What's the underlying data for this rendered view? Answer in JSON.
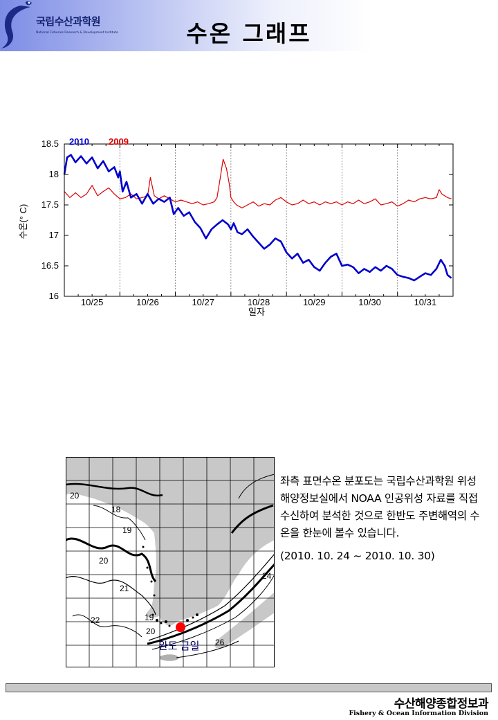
{
  "header": {
    "title": "수온 그래프",
    "logo_name": "국립수산과학원",
    "logo_sub": "National Fisheries Research & Development Institute"
  },
  "chart_data": {
    "type": "line",
    "title": "",
    "xlabel": "일자",
    "ylabel": "수온(° C)",
    "ylim": [
      16,
      18.5
    ],
    "yticks": [
      "18.5",
      "18",
      "17.5",
      "17",
      "16.5",
      "16"
    ],
    "categories": [
      "10/25",
      "10/26",
      "10/27",
      "10/28",
      "10/29",
      "10/30",
      "10/31"
    ],
    "x_range_days": [
      0,
      7
    ],
    "series": [
      {
        "name": "2010",
        "color": "#0000cc",
        "points": [
          [
            0,
            18.0
          ],
          [
            0.05,
            18.28
          ],
          [
            0.12,
            18.32
          ],
          [
            0.2,
            18.2
          ],
          [
            0.3,
            18.3
          ],
          [
            0.4,
            18.18
          ],
          [
            0.5,
            18.28
          ],
          [
            0.6,
            18.1
          ],
          [
            0.7,
            18.22
          ],
          [
            0.8,
            18.05
          ],
          [
            0.9,
            18.12
          ],
          [
            0.97,
            17.95
          ],
          [
            1.0,
            18.05
          ],
          [
            1.05,
            17.72
          ],
          [
            1.12,
            17.88
          ],
          [
            1.2,
            17.62
          ],
          [
            1.3,
            17.68
          ],
          [
            1.4,
            17.52
          ],
          [
            1.5,
            17.68
          ],
          [
            1.6,
            17.52
          ],
          [
            1.7,
            17.6
          ],
          [
            1.8,
            17.55
          ],
          [
            1.9,
            17.62
          ],
          [
            1.97,
            17.35
          ],
          [
            2.05,
            17.45
          ],
          [
            2.15,
            17.32
          ],
          [
            2.25,
            17.38
          ],
          [
            2.35,
            17.22
          ],
          [
            2.45,
            17.12
          ],
          [
            2.55,
            16.95
          ],
          [
            2.65,
            17.1
          ],
          [
            2.75,
            17.18
          ],
          [
            2.85,
            17.25
          ],
          [
            2.95,
            17.18
          ],
          [
            3.0,
            17.1
          ],
          [
            3.05,
            17.2
          ],
          [
            3.12,
            17.05
          ],
          [
            3.2,
            17.02
          ],
          [
            3.3,
            17.1
          ],
          [
            3.4,
            16.98
          ],
          [
            3.5,
            16.88
          ],
          [
            3.6,
            16.78
          ],
          [
            3.7,
            16.85
          ],
          [
            3.8,
            16.95
          ],
          [
            3.9,
            16.9
          ],
          [
            4.0,
            16.72
          ],
          [
            4.1,
            16.62
          ],
          [
            4.2,
            16.7
          ],
          [
            4.3,
            16.55
          ],
          [
            4.4,
            16.6
          ],
          [
            4.5,
            16.48
          ],
          [
            4.6,
            16.42
          ],
          [
            4.7,
            16.55
          ],
          [
            4.8,
            16.65
          ],
          [
            4.9,
            16.7
          ],
          [
            5.0,
            16.5
          ],
          [
            5.1,
            16.52
          ],
          [
            5.2,
            16.48
          ],
          [
            5.3,
            16.38
          ],
          [
            5.4,
            16.45
          ],
          [
            5.5,
            16.4
          ],
          [
            5.6,
            16.48
          ],
          [
            5.7,
            16.42
          ],
          [
            5.8,
            16.5
          ],
          [
            5.9,
            16.45
          ],
          [
            6.0,
            16.35
          ],
          [
            6.1,
            16.32
          ],
          [
            6.2,
            16.3
          ],
          [
            6.3,
            16.26
          ],
          [
            6.4,
            16.32
          ],
          [
            6.5,
            16.38
          ],
          [
            6.6,
            16.35
          ],
          [
            6.7,
            16.45
          ],
          [
            6.78,
            16.6
          ],
          [
            6.85,
            16.5
          ],
          [
            6.9,
            16.35
          ],
          [
            6.97,
            16.3
          ]
        ]
      },
      {
        "name": "2009",
        "color": "#dd0000",
        "points": [
          [
            0,
            17.72
          ],
          [
            0.1,
            17.62
          ],
          [
            0.2,
            17.7
          ],
          [
            0.3,
            17.62
          ],
          [
            0.4,
            17.68
          ],
          [
            0.5,
            17.82
          ],
          [
            0.6,
            17.65
          ],
          [
            0.7,
            17.72
          ],
          [
            0.8,
            17.78
          ],
          [
            0.9,
            17.68
          ],
          [
            1.0,
            17.6
          ],
          [
            1.1,
            17.62
          ],
          [
            1.2,
            17.68
          ],
          [
            1.3,
            17.6
          ],
          [
            1.4,
            17.62
          ],
          [
            1.5,
            17.65
          ],
          [
            1.55,
            17.95
          ],
          [
            1.62,
            17.65
          ],
          [
            1.7,
            17.6
          ],
          [
            1.8,
            17.65
          ],
          [
            1.9,
            17.6
          ],
          [
            2.0,
            17.55
          ],
          [
            2.1,
            17.58
          ],
          [
            2.2,
            17.55
          ],
          [
            2.3,
            17.52
          ],
          [
            2.4,
            17.55
          ],
          [
            2.5,
            17.5
          ],
          [
            2.6,
            17.52
          ],
          [
            2.7,
            17.55
          ],
          [
            2.75,
            17.62
          ],
          [
            2.8,
            17.9
          ],
          [
            2.86,
            18.25
          ],
          [
            2.92,
            18.1
          ],
          [
            2.97,
            17.85
          ],
          [
            3.0,
            17.62
          ],
          [
            3.05,
            17.55
          ],
          [
            3.1,
            17.5
          ],
          [
            3.2,
            17.45
          ],
          [
            3.3,
            17.5
          ],
          [
            3.4,
            17.55
          ],
          [
            3.5,
            17.48
          ],
          [
            3.6,
            17.52
          ],
          [
            3.7,
            17.5
          ],
          [
            3.8,
            17.58
          ],
          [
            3.9,
            17.62
          ],
          [
            4.0,
            17.55
          ],
          [
            4.1,
            17.5
          ],
          [
            4.2,
            17.52
          ],
          [
            4.3,
            17.58
          ],
          [
            4.4,
            17.52
          ],
          [
            4.5,
            17.55
          ],
          [
            4.6,
            17.5
          ],
          [
            4.7,
            17.55
          ],
          [
            4.8,
            17.52
          ],
          [
            4.9,
            17.55
          ],
          [
            5.0,
            17.5
          ],
          [
            5.1,
            17.55
          ],
          [
            5.2,
            17.52
          ],
          [
            5.3,
            17.58
          ],
          [
            5.4,
            17.52
          ],
          [
            5.5,
            17.55
          ],
          [
            5.6,
            17.6
          ],
          [
            5.7,
            17.5
          ],
          [
            5.8,
            17.52
          ],
          [
            5.9,
            17.55
          ],
          [
            6.0,
            17.48
          ],
          [
            6.1,
            17.52
          ],
          [
            6.2,
            17.58
          ],
          [
            6.3,
            17.55
          ],
          [
            6.4,
            17.6
          ],
          [
            6.5,
            17.62
          ],
          [
            6.6,
            17.6
          ],
          [
            6.7,
            17.62
          ],
          [
            6.75,
            17.75
          ],
          [
            6.8,
            17.68
          ],
          [
            6.9,
            17.62
          ],
          [
            6.97,
            17.6
          ]
        ]
      }
    ]
  },
  "map": {
    "labels": [
      "20",
      "18",
      "19",
      "20",
      "21",
      "22",
      "19",
      "20",
      "26",
      "24"
    ],
    "location_label": "완도 금일"
  },
  "description": {
    "text": "좌측 표면수온 분포도는 국립수산과학원 위성해양정보실에서 NOAA 인공위성 자료를 직접 수신하여 분석한 것으로 한반도 주변해역의 수온을 한눈에 볼수 있습니다.",
    "date_range": "(2010. 10. 24 ~ 2010. 10. 30)"
  },
  "footer": {
    "korean": "수산해양종합정보과",
    "english": "Fishery & Ocean Information Division"
  }
}
